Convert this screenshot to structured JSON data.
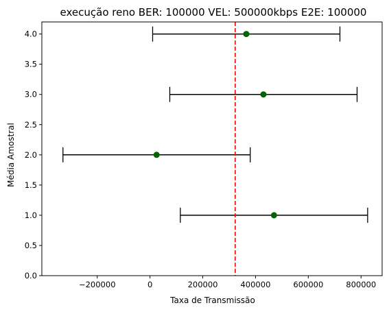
{
  "chart_data": {
    "type": "scatter",
    "title": "execução reno BER: 100000 VEL: 500000kbps E2E: 100000",
    "xlabel": "Taxa de Transmissão",
    "ylabel": "Média Amostral",
    "xlim": [
      -410000,
      880000
    ],
    "ylim": [
      0.0,
      4.2
    ],
    "grid": false,
    "x_ticks": [
      {
        "value": -200000,
        "label": "−200000"
      },
      {
        "value": 0,
        "label": "0"
      },
      {
        "value": 200000,
        "label": "200000"
      },
      {
        "value": 400000,
        "label": "400000"
      },
      {
        "value": 600000,
        "label": "600000"
      },
      {
        "value": 800000,
        "label": "800000"
      }
    ],
    "y_ticks": [
      {
        "value": 0.0,
        "label": "0.0"
      },
      {
        "value": 0.5,
        "label": "0.5"
      },
      {
        "value": 1.0,
        "label": "1.0"
      },
      {
        "value": 1.5,
        "label": "1.5"
      },
      {
        "value": 2.0,
        "label": "2.0"
      },
      {
        "value": 2.5,
        "label": "2.5"
      },
      {
        "value": 3.0,
        "label": "3.0"
      },
      {
        "value": 3.5,
        "label": "3.5"
      },
      {
        "value": 4.0,
        "label": "4.0"
      }
    ],
    "points": [
      {
        "y": 1.0,
        "x": 470000,
        "xmin": 115000,
        "xmax": 825000
      },
      {
        "y": 2.0,
        "x": 25000,
        "xmin": -330000,
        "xmax": 380000
      },
      {
        "y": 3.0,
        "x": 430000,
        "xmin": 75000,
        "xmax": 785000
      },
      {
        "y": 4.0,
        "x": 365000,
        "xmin": 10000,
        "xmax": 720000
      }
    ],
    "reference_line": {
      "orientation": "vertical",
      "x": 323000,
      "color": "#ff0000",
      "style": "dashed"
    },
    "colors": {
      "point": "#006400",
      "errorbar": "#000000",
      "axes": "#000000"
    }
  }
}
